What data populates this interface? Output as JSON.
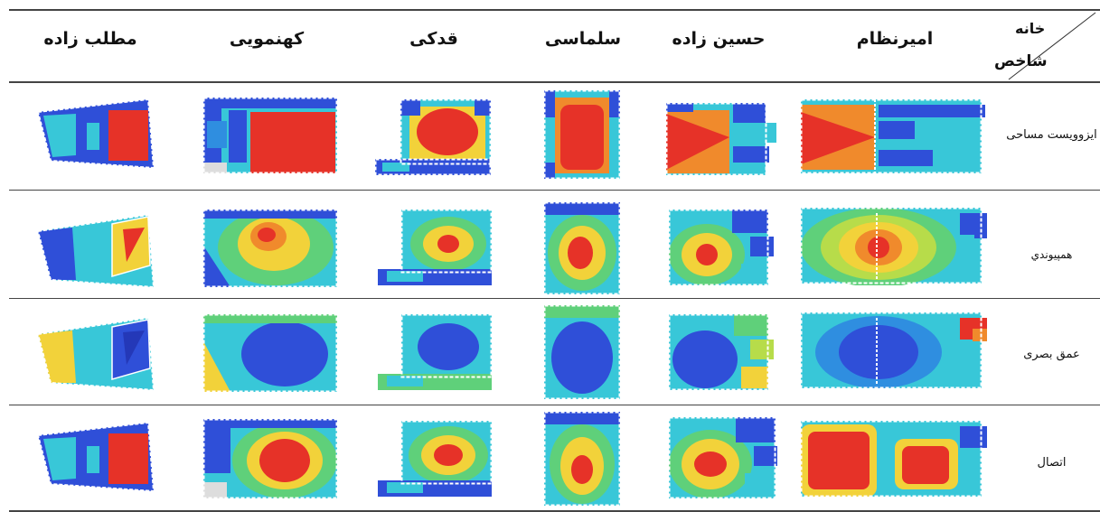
{
  "header": {
    "corner_top": "خانه",
    "corner_bottom": "شاخص",
    "columns": [
      "امیرنظام",
      "حسین زاده",
      "سلماسی",
      "قدکی",
      "کهنمویی",
      "مطلب زاده"
    ]
  },
  "rows": [
    {
      "label": "ایزوویست مساحی",
      "kind": "isovist"
    },
    {
      "label": "همپیوندي",
      "kind": "integration"
    },
    {
      "label": "عمق بصری",
      "kind": "depth"
    },
    {
      "label": "اتصال",
      "kind": "connectivity"
    }
  ],
  "colors": {
    "red": "#e63228",
    "orange": "#f08a2c",
    "yellow": "#f2d23a",
    "yellow_green": "#b7dc4a",
    "green": "#5fd07a",
    "cyan": "#38c7d8",
    "blue": "#2f4fd8",
    "dark_blue": "#2438b8",
    "wall": "#ffffff"
  }
}
